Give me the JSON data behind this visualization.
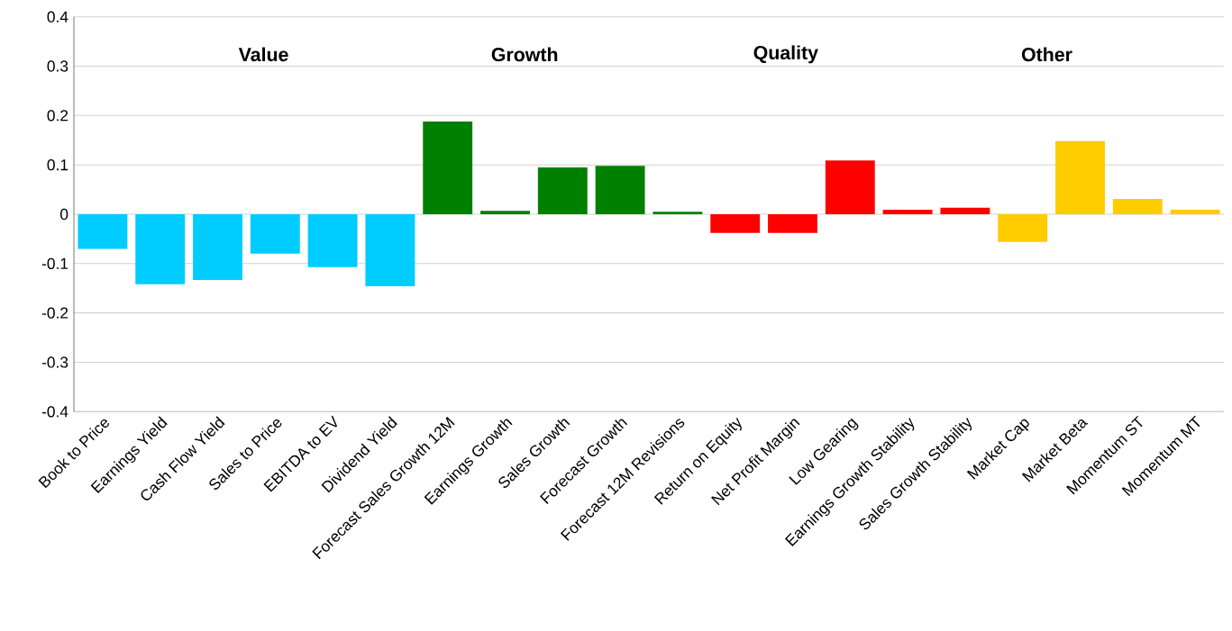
{
  "chart_data": {
    "type": "bar",
    "categories": [
      "Book to Price",
      "Earnings Yield",
      "Cash Flow Yield",
      "Sales to Price",
      "EBITDA to EV",
      "Dividend Yield",
      "Forecast Sales Growth 12M",
      "Earnings Growth",
      "Sales Growth",
      "Forecast Growth",
      "Forecast 12M Revisions",
      "Return on Equity",
      "Net Profit Margin",
      "Low Gearing",
      "Earnings Growth Stability",
      "Sales Growth Stability",
      "Market Cap",
      "Market Beta",
      "Momentum ST",
      "Momentum MT"
    ],
    "values": [
      -0.07,
      -0.142,
      -0.133,
      -0.08,
      -0.107,
      -0.146,
      0.188,
      0.007,
      0.095,
      0.098,
      0.005,
      -0.038,
      -0.038,
      0.109,
      0.009,
      0.013,
      -0.056,
      0.148,
      0.031,
      0.009
    ],
    "colors": [
      "#00ccff",
      "#00ccff",
      "#00ccff",
      "#00ccff",
      "#00ccff",
      "#00ccff",
      "#008000",
      "#008000",
      "#008000",
      "#008000",
      "#008000",
      "#ff0000",
      "#ff0000",
      "#ff0000",
      "#ff0000",
      "#ff0000",
      "#ffcc00",
      "#ffcc00",
      "#ffcc00",
      "#ffcc00"
    ],
    "ylim": [
      -0.4,
      0.4
    ],
    "yticks": [
      -0.4,
      -0.3,
      -0.2,
      -0.1,
      0,
      0.1,
      0.2,
      0.3,
      0.4
    ],
    "grid": "y",
    "annotations": [
      "Value",
      "Growth",
      "Quality",
      "Other"
    ]
  }
}
